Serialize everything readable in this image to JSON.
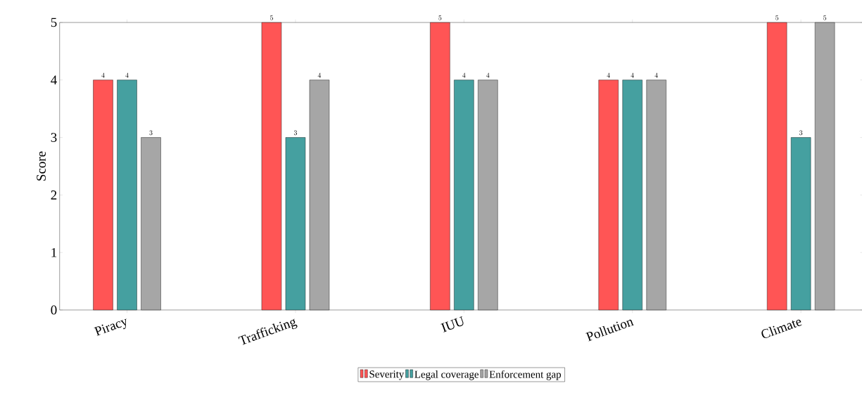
{
  "chart_data": {
    "type": "bar",
    "ylabel": "Score",
    "categories": [
      "Piracy",
      "Trafficking",
      "IUU",
      "Pollution",
      "Climate"
    ],
    "series": [
      {
        "name": "Severity",
        "color": "#ff5555",
        "values": [
          4,
          5,
          5,
          4,
          5
        ]
      },
      {
        "name": "Legal coverage",
        "color": "#45a0a0",
        "values": [
          4,
          3,
          4,
          4,
          3
        ]
      },
      {
        "name": "Enforcement gap",
        "color": "#a6a6a6",
        "values": [
          3,
          4,
          4,
          4,
          5
        ]
      }
    ],
    "ylim": [
      0,
      5
    ],
    "yticks": [
      0,
      1,
      2,
      3,
      4,
      5
    ],
    "data_labels": true,
    "legend": "bottom"
  }
}
